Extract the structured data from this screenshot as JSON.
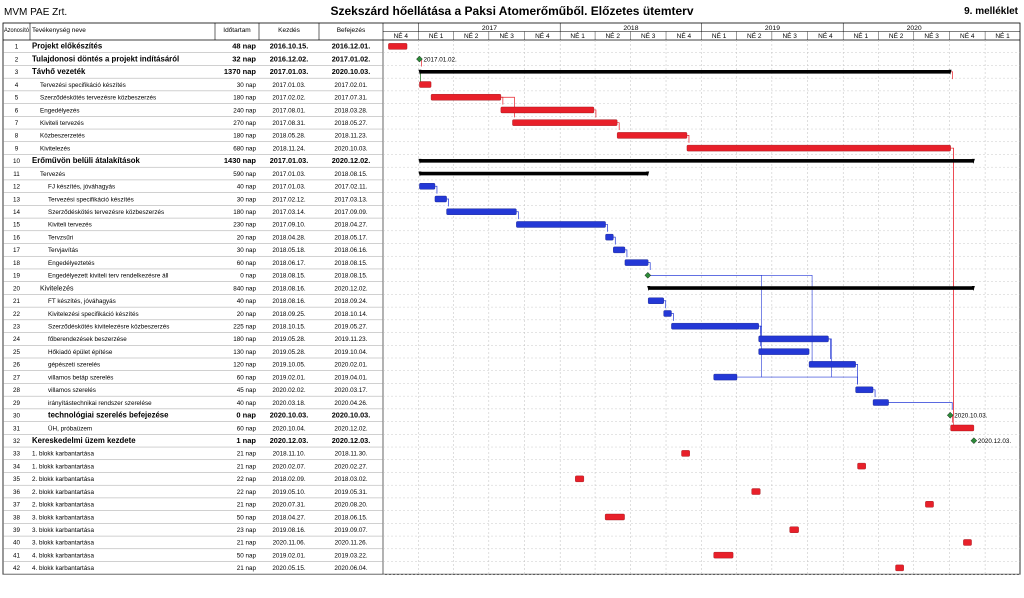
{
  "header": {
    "company": "MVM PAE Zrt.",
    "title": "Szekszárd hőellátása a Paksi Atomerőműből. Előzetes ütemterv",
    "annex": "9. melléklet"
  },
  "columns": {
    "id": "Azonosító",
    "name": "Tevékenység neve",
    "duration": "Időtartam",
    "start": "Kezdés",
    "end": "Befejezés"
  },
  "timeline": {
    "years": [
      "2017",
      "2018",
      "2019",
      "2020"
    ],
    "quarters": [
      "NÉ 4",
      "NÉ 1",
      "NÉ 2",
      "NÉ 3",
      "NÉ 4",
      "NÉ 1",
      "NÉ 2",
      "NÉ 3",
      "NÉ 4",
      "NÉ 1",
      "NÉ 2",
      "NÉ 3",
      "NÉ 4",
      "NÉ 1",
      "NÉ 2",
      "NÉ 3",
      "NÉ 4",
      "NÉ 1"
    ]
  },
  "colors": {
    "red": "#e8202a",
    "blue": "#2438d6",
    "summary": "#000000",
    "milestone": "#2e8b3a",
    "grid": "#bdbdbd"
  },
  "chart_data": {
    "type": "gantt",
    "title": "Szekszárd hőellátása a Paksi Atomerőműből. Előzetes ütemterv",
    "axis_range": [
      "2016-10-01",
      "2021-03-31"
    ],
    "tasks": [
      {
        "id": "1",
        "name": "Projekt előkészítés",
        "duration": "48 nap",
        "start": "2016.10.15.",
        "end": "2016.12.01.",
        "style": "bold",
        "color": "red",
        "indent": 0
      },
      {
        "id": "2",
        "name": "Tulajdonosi döntés a projekt indításáról",
        "duration": "32 nap",
        "start": "2016.12.02.",
        "end": "2017.01.02.",
        "style": "bold",
        "color": "milestone",
        "indent": 0,
        "label": "2017.01.02."
      },
      {
        "id": "3",
        "name": "Távhő vezeték",
        "duration": "1370 nap",
        "start": "2017.01.03.",
        "end": "2020.10.03.",
        "style": "bold",
        "color": "summary",
        "indent": 0
      },
      {
        "id": "4",
        "name": "Tervezési specifikáció készítés",
        "duration": "30 nap",
        "start": "2017.01.03.",
        "end": "2017.02.01.",
        "color": "red",
        "indent": 1
      },
      {
        "id": "5",
        "name": "Szerződéskötés tervezésre közbeszerzés",
        "duration": "180 nap",
        "start": "2017.02.02.",
        "end": "2017.07.31.",
        "color": "red",
        "indent": 1
      },
      {
        "id": "6",
        "name": "Engedélyezés",
        "duration": "240 nap",
        "start": "2017.08.01.",
        "end": "2018.03.28.",
        "color": "red",
        "indent": 1
      },
      {
        "id": "7",
        "name": "Kiviteli tervezés",
        "duration": "270 nap",
        "start": "2017.08.31.",
        "end": "2018.05.27.",
        "color": "red",
        "indent": 1
      },
      {
        "id": "8",
        "name": "Közbeszerzetés",
        "duration": "180 nap",
        "start": "2018.05.28.",
        "end": "2018.11.23.",
        "color": "red",
        "indent": 1
      },
      {
        "id": "9",
        "name": "Kivitelezés",
        "duration": "680 nap",
        "start": "2018.11.24.",
        "end": "2020.10.03.",
        "color": "red",
        "indent": 1
      },
      {
        "id": "10",
        "name": "Erőművön belüli átalakítások",
        "duration": "1430 nap",
        "start": "2017.01.03.",
        "end": "2020.12.02.",
        "style": "bold",
        "color": "summary",
        "indent": 0
      },
      {
        "id": "11",
        "name": "Tervezés",
        "duration": "590 nap",
        "start": "2017.01.03.",
        "end": "2018.08.15.",
        "color": "summary",
        "indent": 1
      },
      {
        "id": "12",
        "name": "FJ készítés, jóváhagyás",
        "duration": "40 nap",
        "start": "2017.01.03.",
        "end": "2017.02.11.",
        "color": "blue",
        "indent": 2
      },
      {
        "id": "13",
        "name": "Tervezési specifikáció készítés",
        "duration": "30 nap",
        "start": "2017.02.12.",
        "end": "2017.03.13.",
        "color": "blue",
        "indent": 2
      },
      {
        "id": "14",
        "name": "Szerződéskötés tervezésre közbeszerzés",
        "duration": "180 nap",
        "start": "2017.03.14.",
        "end": "2017.09.09.",
        "color": "blue",
        "indent": 2
      },
      {
        "id": "15",
        "name": "Kiviteli tervezés",
        "duration": "230 nap",
        "start": "2017.09.10.",
        "end": "2018.04.27.",
        "color": "blue",
        "indent": 2
      },
      {
        "id": "16",
        "name": "Tervzsűri",
        "duration": "20 nap",
        "start": "2018.04.28.",
        "end": "2018.05.17.",
        "color": "blue",
        "indent": 2
      },
      {
        "id": "17",
        "name": "Tervjavítás",
        "duration": "30 nap",
        "start": "2018.05.18.",
        "end": "2018.06.16.",
        "color": "blue",
        "indent": 2
      },
      {
        "id": "18",
        "name": "Engedélyeztetés",
        "duration": "60 nap",
        "start": "2018.06.17.",
        "end": "2018.08.15.",
        "color": "blue",
        "indent": 2
      },
      {
        "id": "19",
        "name": "Engedélyezett kiviteli terv rendelkezésre áll",
        "duration": "0 nap",
        "start": "2018.08.15.",
        "end": "2018.08.15.",
        "color": "milestone",
        "indent": 2
      },
      {
        "id": "20",
        "name": "Kivitelezés",
        "duration": "840 nap",
        "start": "2018.08.16.",
        "end": "2020.12.02.",
        "style": "semibold",
        "color": "summary",
        "indent": 1
      },
      {
        "id": "21",
        "name": "FT készítés, jóváhagyás",
        "duration": "40 nap",
        "start": "2018.08.16.",
        "end": "2018.09.24.",
        "color": "blue",
        "indent": 2
      },
      {
        "id": "22",
        "name": "Kivitelezési specifikáció készítés",
        "duration": "20 nap",
        "start": "2018.09.25.",
        "end": "2018.10.14.",
        "color": "blue",
        "indent": 2
      },
      {
        "id": "23",
        "name": "Szerződéskötés kivitelezésre közbeszerzés",
        "duration": "225 nap",
        "start": "2018.10.15.",
        "end": "2019.05.27.",
        "color": "blue",
        "indent": 2
      },
      {
        "id": "24",
        "name": "főberendezések beszerzése",
        "duration": "180 nap",
        "start": "2019.05.28.",
        "end": "2019.11.23.",
        "color": "blue",
        "indent": 2
      },
      {
        "id": "25",
        "name": "Hőkiadó épület építése",
        "duration": "130 nap",
        "start": "2019.05.28.",
        "end": "2019.10.04.",
        "color": "blue",
        "indent": 2
      },
      {
        "id": "26",
        "name": "gépészeti szerelés",
        "duration": "120 nap",
        "start": "2019.10.05.",
        "end": "2020.02.01.",
        "color": "blue",
        "indent": 2
      },
      {
        "id": "27",
        "name": "villamos betáp szerelés",
        "duration": "60 nap",
        "start": "2019.02.01.",
        "end": "2019.04.01.",
        "color": "blue",
        "indent": 2
      },
      {
        "id": "28",
        "name": "villamos szerelés",
        "duration": "45 nap",
        "start": "2020.02.02.",
        "end": "2020.03.17.",
        "color": "blue",
        "indent": 2
      },
      {
        "id": "29",
        "name": "irányítástechnikai rendszer szerelése",
        "duration": "40 nap",
        "start": "2020.03.18.",
        "end": "2020.04.26.",
        "color": "blue",
        "indent": 2
      },
      {
        "id": "30",
        "name": "technológiai szerelés befejezése",
        "duration": "0 nap",
        "start": "2020.10.03.",
        "end": "2020.10.03.",
        "style": "bold",
        "color": "milestone",
        "indent": 2,
        "label": "2020.10.03."
      },
      {
        "id": "31",
        "name": "ÜH, próbaüzem",
        "duration": "60 nap",
        "start": "2020.10.04.",
        "end": "2020.12.02.",
        "color": "red",
        "indent": 2
      },
      {
        "id": "32",
        "name": "Kereskedelmi üzem kezdete",
        "duration": "1 nap",
        "start": "2020.12.03.",
        "end": "2020.12.03.",
        "style": "bold",
        "color": "milestone",
        "indent": 0,
        "label": "2020.12.03."
      },
      {
        "id": "33",
        "name": "1. blokk karbantartása",
        "duration": "21 nap",
        "start": "2018.11.10.",
        "end": "2018.11.30.",
        "color": "red",
        "indent": 0
      },
      {
        "id": "34",
        "name": "1. blokk karbantartása",
        "duration": "21 nap",
        "start": "2020.02.07.",
        "end": "2020.02.27.",
        "color": "red",
        "indent": 0
      },
      {
        "id": "35",
        "name": "2. blokk karbantartása",
        "duration": "22 nap",
        "start": "2018.02.09.",
        "end": "2018.03.02.",
        "color": "red",
        "indent": 0
      },
      {
        "id": "36",
        "name": "2. blokk karbantartása",
        "duration": "22 nap",
        "start": "2019.05.10.",
        "end": "2019.05.31.",
        "color": "red",
        "indent": 0
      },
      {
        "id": "37",
        "name": "2. blokk karbantartása",
        "duration": "21 nap",
        "start": "2020.07.31.",
        "end": "2020.08.20.",
        "color": "red",
        "indent": 0
      },
      {
        "id": "38",
        "name": "3. blokk karbantartása",
        "duration": "50 nap",
        "start": "2018.04.27.",
        "end": "2018.06.15.",
        "color": "red",
        "indent": 0
      },
      {
        "id": "39",
        "name": "3. blokk karbantartása",
        "duration": "23 nap",
        "start": "2019.08.16.",
        "end": "2019.09.07.",
        "color": "red",
        "indent": 0
      },
      {
        "id": "40",
        "name": "3. blokk karbantartása",
        "duration": "21 nap",
        "start": "2020.11.06.",
        "end": "2020.11.26.",
        "color": "red",
        "indent": 0
      },
      {
        "id": "41",
        "name": "4. blokk karbantartása",
        "duration": "50 nap",
        "start": "2019.02.01.",
        "end": "2019.03.22.",
        "color": "red",
        "indent": 0
      },
      {
        "id": "42",
        "name": "4. blokk karbantartása",
        "duration": "21 nap",
        "start": "2020.05.15.",
        "end": "2020.06.04.",
        "color": "red",
        "indent": 0
      }
    ]
  }
}
